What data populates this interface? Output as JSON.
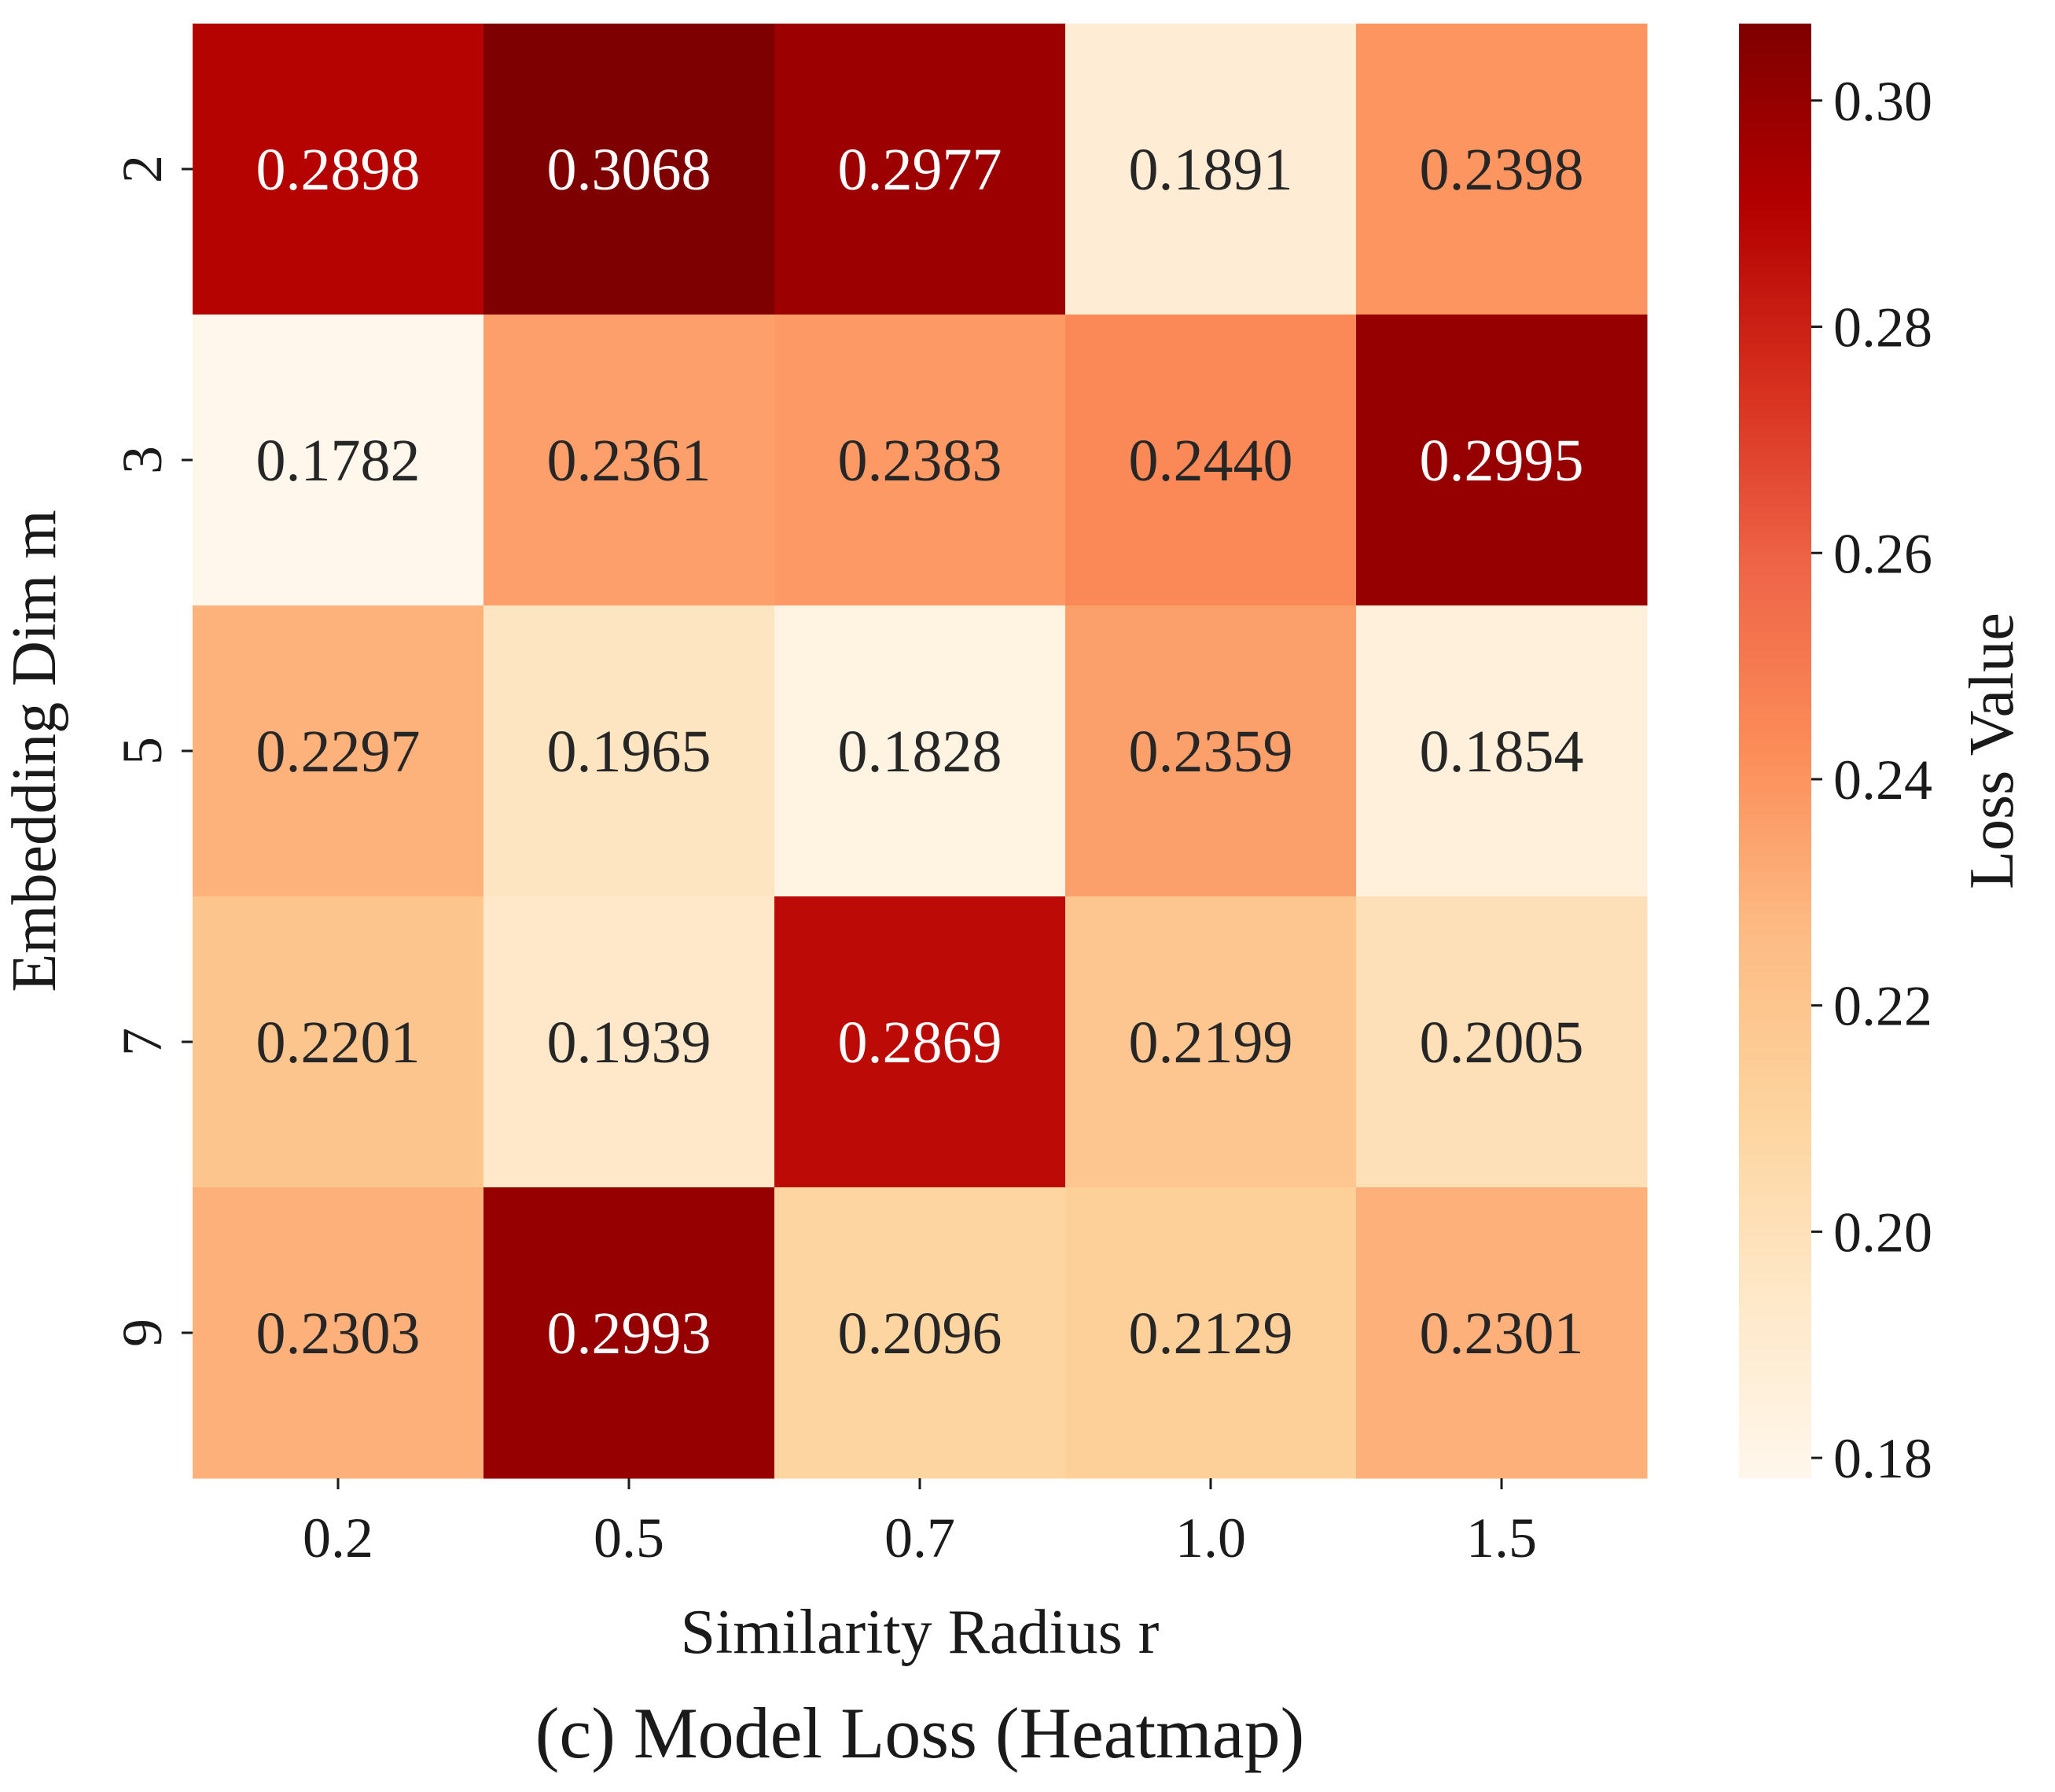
{
  "chart_data": {
    "type": "heatmap",
    "caption": "(c) Model Loss (Heatmap)",
    "xlabel": "Similarity Radius r",
    "ylabel": "Embedding Dim m",
    "x_categories": [
      "0.2",
      "0.5",
      "0.7",
      "1.0",
      "1.5"
    ],
    "y_categories": [
      "2",
      "3",
      "5",
      "7",
      "9"
    ],
    "values": [
      [
        0.2898,
        0.3068,
        0.2977,
        0.1891,
        0.2398
      ],
      [
        0.1782,
        0.2361,
        0.2383,
        0.244,
        0.2995
      ],
      [
        0.2297,
        0.1965,
        0.1828,
        0.2359,
        0.1854
      ],
      [
        0.2201,
        0.1939,
        0.2869,
        0.2199,
        0.2005
      ],
      [
        0.2303,
        0.2993,
        0.2096,
        0.2129,
        0.2301
      ]
    ],
    "cell_labels": [
      [
        "0.2898",
        "0.3068",
        "0.2977",
        "0.1891",
        "0.2398"
      ],
      [
        "0.1782",
        "0.2361",
        "0.2383",
        "0.2440",
        "0.2995"
      ],
      [
        "0.2297",
        "0.1965",
        "0.1828",
        "0.2359",
        "0.1854"
      ],
      [
        "0.2201",
        "0.1939",
        "0.2869",
        "0.2199",
        "0.2005"
      ],
      [
        "0.2303",
        "0.2993",
        "0.2096",
        "0.2129",
        "0.2301"
      ]
    ],
    "colorbar": {
      "label": "Loss Value",
      "colormap": "OrRd",
      "range": [
        0.1782,
        0.3068
      ],
      "ticks": [
        0.18,
        0.2,
        0.22,
        0.24,
        0.26,
        0.28,
        0.3
      ],
      "tick_labels": [
        "0.18",
        "0.20",
        "0.22",
        "0.24",
        "0.26",
        "0.28",
        "0.30"
      ]
    },
    "colors": {
      "scale": [
        "#fff7ec",
        "#fee8c8",
        "#fdd49e",
        "#fdbb84",
        "#fc8d59",
        "#ef6548",
        "#d7301f",
        "#b30000",
        "#7f0000"
      ],
      "text_dark": "#262626",
      "text_light": "#ffffff"
    }
  }
}
